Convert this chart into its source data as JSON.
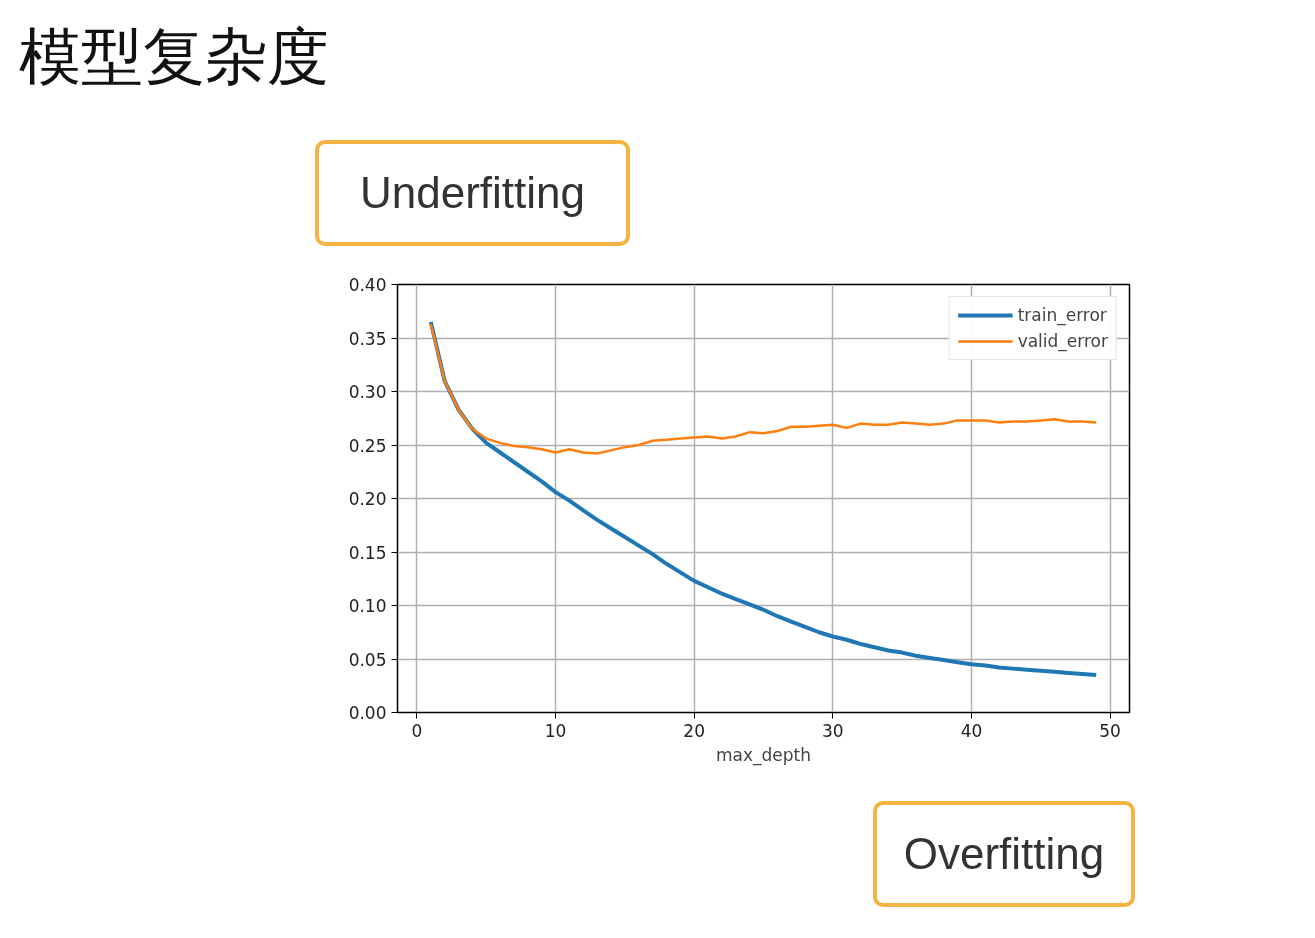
{
  "chart_data": {
    "type": "line",
    "title": "模型复杂度",
    "xlabel": "max_depth",
    "x": [
      1,
      2,
      3,
      4,
      5,
      6,
      7,
      8,
      9,
      10,
      11,
      12,
      13,
      14,
      15,
      16,
      17,
      18,
      19,
      20,
      21,
      22,
      23,
      24,
      25,
      26,
      27,
      28,
      29,
      30,
      31,
      32,
      33,
      34,
      35,
      36,
      37,
      38,
      39,
      40,
      41,
      42,
      43,
      44,
      45,
      46,
      47,
      48,
      49
    ],
    "series": [
      {
        "name": "train_error",
        "color": "#1f77b4",
        "values": [
          0.365,
          0.31,
          0.283,
          0.265,
          0.252,
          0.243,
          0.234,
          0.225,
          0.216,
          0.206,
          0.198,
          0.189,
          0.18,
          0.172,
          0.164,
          0.156,
          0.148,
          0.139,
          0.131,
          0.123,
          0.117,
          0.111,
          0.106,
          0.101,
          0.096,
          0.09,
          0.085,
          0.08,
          0.075,
          0.071,
          0.068,
          0.064,
          0.061,
          0.058,
          0.056,
          0.053,
          0.051,
          0.049,
          0.047,
          0.045,
          0.044,
          0.042,
          0.041,
          0.04,
          0.039,
          0.038,
          0.037,
          0.036,
          0.035
        ]
      },
      {
        "name": "valid_error",
        "color": "#ff7f0e",
        "values": [
          0.363,
          0.31,
          0.283,
          0.265,
          0.256,
          0.252,
          0.249,
          0.248,
          0.246,
          0.243,
          0.246,
          0.243,
          0.242,
          0.245,
          0.248,
          0.25,
          0.254,
          0.255,
          0.256,
          0.257,
          0.258,
          0.256,
          0.258,
          0.262,
          0.261,
          0.263,
          0.267,
          0.267,
          0.268,
          0.269,
          0.266,
          0.27,
          0.269,
          0.269,
          0.271,
          0.27,
          0.269,
          0.27,
          0.273,
          0.273,
          0.273,
          0.271,
          0.272,
          0.272,
          0.273,
          0.274,
          0.272,
          0.272,
          0.271
        ]
      }
    ],
    "xlim": [
      -1.4,
      51.4
    ],
    "xticks": [
      0,
      10,
      20,
      30,
      40,
      50
    ],
    "ylim": [
      0,
      0.4
    ],
    "yticks": [
      {
        "value": 0,
        "label": "0.00"
      },
      {
        "value": 0.05,
        "label": "0.05"
      },
      {
        "value": 0.1,
        "label": "0.10"
      },
      {
        "value": 0.15,
        "label": "0.15"
      },
      {
        "value": 0.2,
        "label": "0.20"
      },
      {
        "value": 0.25,
        "label": "0.25"
      },
      {
        "value": 0.3,
        "label": "0.30"
      },
      {
        "value": 0.35,
        "label": "0.35"
      },
      {
        "value": 0.4,
        "label": "0.40"
      }
    ],
    "grid": true,
    "legend": "top right",
    "marker": "none",
    "line_style": "solid",
    "annotations": [
      "Underfitting",
      "Overfitting"
    ]
  }
}
